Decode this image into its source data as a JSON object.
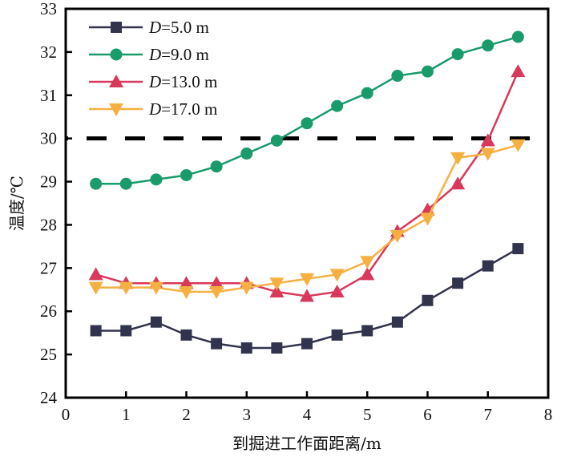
{
  "chart_data": {
    "type": "line",
    "title": "",
    "xlabel": "到掘进工作面距离/m",
    "ylabel": "温度/℃",
    "xlim": [
      0,
      8
    ],
    "ylim": [
      24,
      33
    ],
    "x_ticks": [
      0,
      1,
      2,
      3,
      4,
      5,
      6,
      7,
      8
    ],
    "y_ticks": [
      24,
      25,
      26,
      27,
      28,
      29,
      30,
      31,
      32,
      33
    ],
    "grid": false,
    "legend_position": "top-left",
    "x": [
      0.5,
      1.0,
      1.5,
      2.0,
      2.5,
      3.0,
      3.5,
      4.0,
      4.5,
      5.0,
      5.5,
      6.0,
      6.5,
      7.0,
      7.5
    ],
    "reference_line": {
      "y": 30,
      "style": "dashed",
      "color": "#000000"
    },
    "series": [
      {
        "name": "D=5.0 m",
        "name_italic": "D",
        "name_rest": "=5.0 m",
        "marker": "square",
        "color": "#32344e",
        "values": [
          25.55,
          25.55,
          25.75,
          25.45,
          25.25,
          25.15,
          25.15,
          25.25,
          25.45,
          25.55,
          25.75,
          26.25,
          26.65,
          27.05,
          27.45
        ]
      },
      {
        "name": "D=9.0 m",
        "name_italic": "D",
        "name_rest": "=9.0 m",
        "marker": "circle",
        "color": "#1a9b6c",
        "values": [
          28.95,
          28.95,
          29.05,
          29.15,
          29.35,
          29.65,
          29.95,
          30.35,
          30.75,
          31.05,
          31.45,
          31.55,
          31.95,
          32.15,
          32.35
        ]
      },
      {
        "name": "D=13.0 m",
        "name_italic": "D",
        "name_rest": "=13.0 m",
        "marker": "triangle-up",
        "color": "#d8385a",
        "values": [
          26.85,
          26.65,
          26.65,
          26.65,
          26.65,
          26.65,
          26.45,
          26.35,
          26.45,
          26.85,
          27.85,
          28.35,
          28.95,
          29.95,
          31.55
        ]
      },
      {
        "name": "D=17.0 m",
        "name_italic": "D",
        "name_rest": "=17.0 m",
        "marker": "triangle-down",
        "color": "#f6b042",
        "values": [
          26.55,
          26.55,
          26.55,
          26.45,
          26.45,
          26.55,
          26.65,
          26.75,
          26.85,
          27.15,
          27.75,
          28.15,
          29.55,
          29.65,
          29.85
        ]
      }
    ]
  }
}
